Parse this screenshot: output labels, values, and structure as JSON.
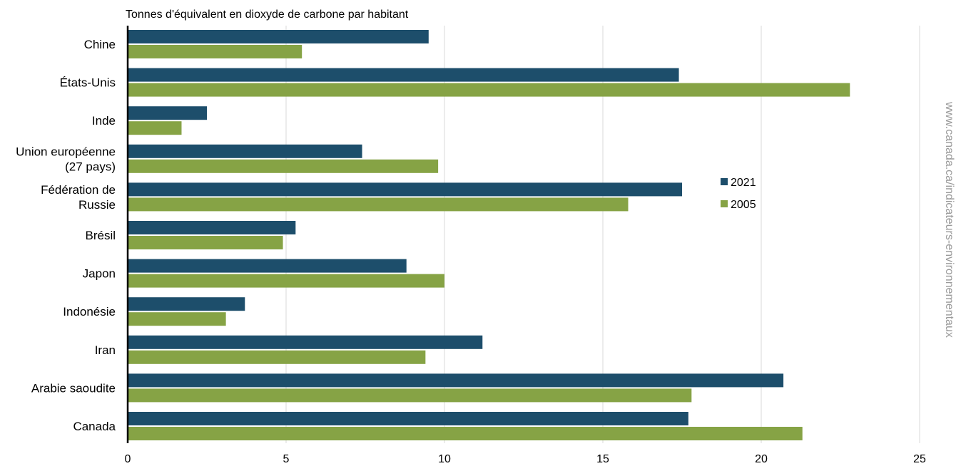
{
  "chart_data": {
    "type": "bar",
    "orientation": "horizontal",
    "title": "",
    "unit_label": "Tonnes d'équivalent en dioxyde de carbone par habitant",
    "categories": [
      [
        "Chine"
      ],
      [
        "États-Unis"
      ],
      [
        "Inde"
      ],
      [
        "Union européenne",
        "(27 pays)"
      ],
      [
        "Fédération de",
        "Russie"
      ],
      [
        "Brésil"
      ],
      [
        "Japon"
      ],
      [
        "Indonésie"
      ],
      [
        "Iran"
      ],
      [
        "Arabie saoudite"
      ],
      [
        "Canada"
      ]
    ],
    "series": [
      {
        "name": "2021",
        "color": "#1d4e6b",
        "values": [
          9.5,
          17.4,
          2.5,
          7.4,
          17.5,
          5.3,
          8.8,
          3.7,
          11.2,
          20.7,
          17.7
        ]
      },
      {
        "name": "2005",
        "color": "#86a345",
        "values": [
          5.5,
          22.8,
          1.7,
          9.8,
          15.8,
          4.9,
          10.0,
          3.1,
          9.4,
          17.8,
          21.3
        ]
      }
    ],
    "xlim": [
      0,
      25
    ],
    "xticks": [
      "0",
      "5",
      "10",
      "15",
      "20",
      "25"
    ],
    "xticks_values": [
      0,
      5,
      10,
      15,
      20,
      25
    ],
    "grid": "vertical",
    "legend_position": "right"
  },
  "watermark": "www.canada.ca/indicateurs-environnementaux"
}
